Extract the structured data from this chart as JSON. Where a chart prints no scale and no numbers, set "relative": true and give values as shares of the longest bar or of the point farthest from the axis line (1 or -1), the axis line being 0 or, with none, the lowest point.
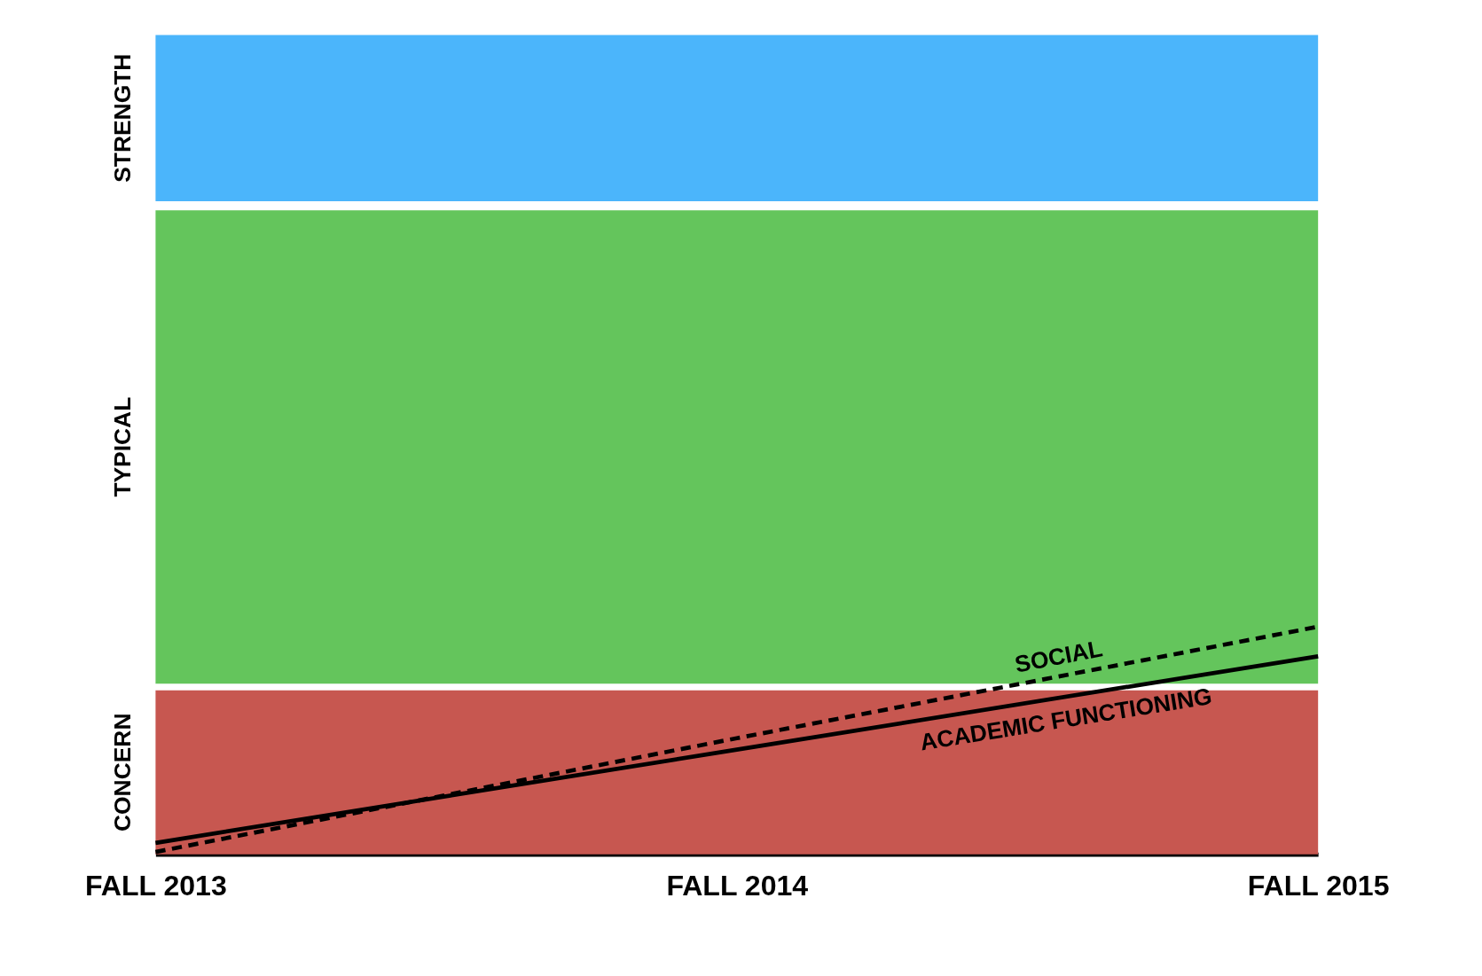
{
  "chart_data": {
    "type": "line",
    "relative": true,
    "categories": [
      "FALL 2013",
      "FALL 2014",
      "FALL 2015"
    ],
    "series": [
      {
        "name": "SOCIAL",
        "color": "#000000",
        "line_style": "dashed",
        "values": [
          0.01,
          0.51,
          1
        ]
      },
      {
        "name": "ACADEMIC FUNCTIONING",
        "color": "#000000",
        "line_style": "solid",
        "values": [
          0.05,
          0.46,
          0.87
        ]
      }
    ],
    "bands": [
      {
        "axis": "y",
        "from": 0,
        "to": 0.72,
        "label": "CONCERN",
        "color": "#c75750"
      },
      {
        "axis": "y",
        "from": 0.75,
        "to": 2.83,
        "label": "TYPICAL",
        "color": "#64c55c"
      },
      {
        "axis": "y",
        "from": 2.87,
        "to": 3.6,
        "label": "STRENGTH",
        "color": "#4bb5fb"
      }
    ],
    "grid": false
  }
}
